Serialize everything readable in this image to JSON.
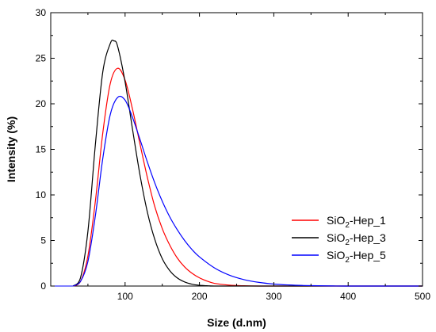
{
  "chart_data": {
    "type": "line",
    "title": "",
    "xlabel": "Size (d.nm)",
    "ylabel": "Intensity (%)",
    "xlim": [
      0,
      500
    ],
    "ylim": [
      0,
      30
    ],
    "xticks": [
      100,
      200,
      300,
      400,
      500
    ],
    "yticks": [
      0,
      5,
      10,
      15,
      20,
      25,
      30
    ],
    "grid": false,
    "legend_position": "bottom-right",
    "series": [
      {
        "name": "SiO2-Hep_1",
        "name_parts": {
          "base": "SiO",
          "sub": "2",
          "tail": "-Hep_1"
        },
        "color": "#ff0000",
        "x": [
          30,
          40,
          50,
          60,
          70,
          80,
          90,
          100,
          110,
          120,
          130,
          140,
          150,
          160,
          170,
          180,
          190,
          200,
          210,
          220,
          240,
          260,
          280,
          300,
          500
        ],
        "y": [
          0,
          0.5,
          3.3,
          9.3,
          16.8,
          22.2,
          23.9,
          22.6,
          19.4,
          15.6,
          11.9,
          8.7,
          6.3,
          4.5,
          3.1,
          2.1,
          1.4,
          0.9,
          0.55,
          0.3,
          0.1,
          0.03,
          0,
          0,
          0
        ]
      },
      {
        "name": "SiO2-Hep_3",
        "name_parts": {
          "base": "SiO",
          "sub": "2",
          "tail": "-Hep_3"
        },
        "color": "#000000",
        "x": [
          30,
          40,
          50,
          60,
          70,
          80,
          85,
          90,
          100,
          110,
          120,
          130,
          140,
          150,
          160,
          170,
          180,
          190,
          200,
          210,
          220,
          240,
          500
        ],
        "y": [
          0,
          0.9,
          6.0,
          15.5,
          23.5,
          26.6,
          26.9,
          26.3,
          22.4,
          17.2,
          12.2,
          8.1,
          5.1,
          3.0,
          1.7,
          0.9,
          0.45,
          0.2,
          0.08,
          0.03,
          0,
          0,
          0
        ]
      },
      {
        "name": "SiO2-Hep_5",
        "name_parts": {
          "base": "SiO",
          "sub": "2",
          "tail": "-Hep_5"
        },
        "color": "#0000ff",
        "x": [
          30,
          40,
          50,
          60,
          70,
          80,
          90,
          100,
          110,
          120,
          130,
          140,
          150,
          160,
          170,
          180,
          190,
          200,
          220,
          240,
          260,
          280,
          300,
          320,
          340,
          360,
          380,
          400,
          500
        ],
        "y": [
          0,
          0.5,
          2.7,
          7.7,
          14.0,
          18.8,
          20.7,
          20.4,
          18.5,
          16.1,
          13.6,
          11.3,
          9.3,
          7.6,
          6.2,
          5.0,
          4.0,
          3.2,
          2.0,
          1.2,
          0.7,
          0.4,
          0.22,
          0.12,
          0.06,
          0.03,
          0.01,
          0,
          0
        ]
      }
    ]
  }
}
